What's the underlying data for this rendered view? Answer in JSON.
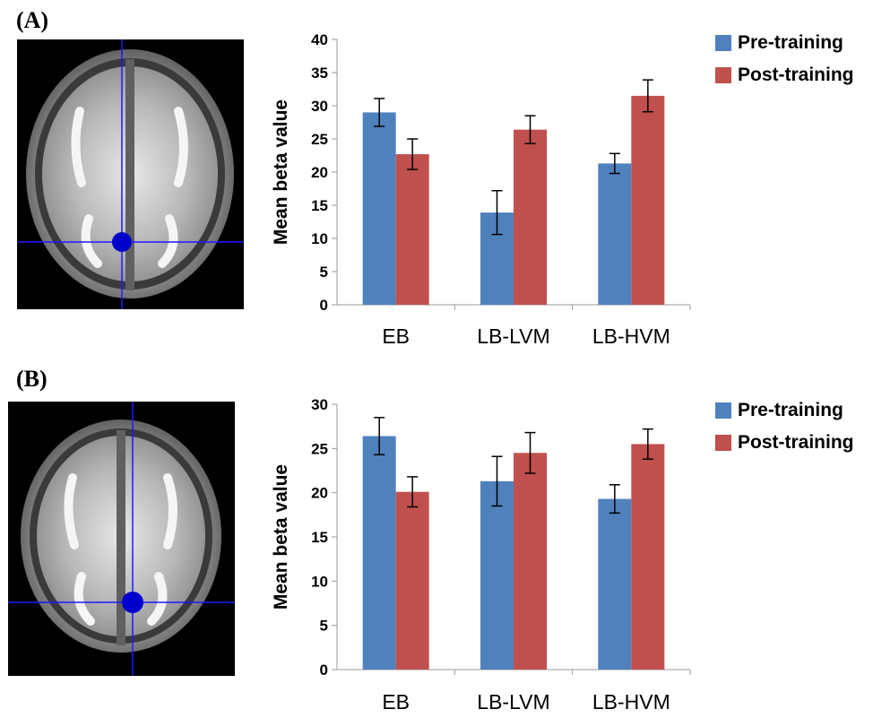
{
  "panels": [
    {
      "label": "(A)"
    },
    {
      "label": "(B)"
    }
  ],
  "colors": {
    "pre": "#4f81bd",
    "post": "#c0504d"
  },
  "chart_data": [
    {
      "type": "bar",
      "categories": [
        "EB",
        "LB-LVM",
        "LB-HVM"
      ],
      "ylabel": "Mean beta value",
      "xlabel": "",
      "ylim": [
        0,
        40
      ],
      "yticks": [
        "0",
        "5",
        "10",
        "15",
        "20",
        "25",
        "30",
        "35",
        "40"
      ],
      "legend_position": "top-right",
      "series": [
        {
          "name": "Pre-training",
          "values": [
            29,
            13.9,
            21.3
          ],
          "errors": [
            2.1,
            3.3,
            1.5
          ]
        },
        {
          "name": "Post-training",
          "values": [
            22.7,
            26.4,
            31.5
          ],
          "errors": [
            2.3,
            2.1,
            2.4
          ]
        }
      ]
    },
    {
      "type": "bar",
      "categories": [
        "EB",
        "LB-LVM",
        "LB-HVM"
      ],
      "ylabel": "Mean beta value",
      "xlabel": "",
      "ylim": [
        0,
        30
      ],
      "yticks": [
        "0",
        "5",
        "10",
        "15",
        "20",
        "25",
        "30"
      ],
      "legend_position": "top-right",
      "series": [
        {
          "name": "Pre-training",
          "values": [
            26.4,
            21.3,
            19.3
          ],
          "errors": [
            2.1,
            2.8,
            1.6
          ]
        },
        {
          "name": "Post-training",
          "values": [
            20.1,
            24.5,
            25.5
          ],
          "errors": [
            1.7,
            2.3,
            1.7
          ]
        }
      ]
    }
  ]
}
